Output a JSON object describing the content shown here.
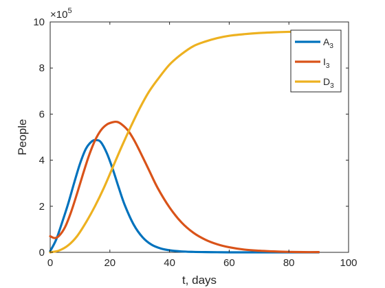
{
  "chart_data": {
    "type": "line",
    "xlabel": "t, days",
    "ylabel": "People",
    "xlim": [
      0,
      100
    ],
    "ylim": [
      0,
      10
    ],
    "y_multiplier": "×10",
    "y_multiplier_exponent": "5",
    "x_ticks": [
      "0",
      "20",
      "40",
      "60",
      "80",
      "100"
    ],
    "y_ticks": [
      "0",
      "2",
      "4",
      "6",
      "8",
      "10"
    ],
    "grid": false,
    "legend_position": "top-right",
    "colors": {
      "A": "#0072BD",
      "I": "#D95319",
      "D": "#EDB120",
      "axis": "#262626"
    },
    "series": [
      {
        "name": "A",
        "subscript": "3",
        "color": "#0072BD",
        "x": [
          0,
          2,
          4,
          6,
          8,
          10,
          12,
          14,
          15.5,
          17,
          19,
          21,
          23,
          25,
          28,
          31,
          34,
          37,
          40,
          44,
          48,
          52,
          56,
          60,
          65,
          70,
          75,
          80,
          85,
          90
        ],
        "y": [
          0.05,
          0.55,
          1.3,
          2.1,
          3.0,
          3.85,
          4.5,
          4.82,
          4.87,
          4.78,
          4.3,
          3.6,
          2.8,
          2.05,
          1.2,
          0.65,
          0.33,
          0.17,
          0.09,
          0.04,
          0.02,
          0.01,
          0.005,
          0.0,
          0.0,
          0.0,
          0.0,
          0.0,
          0.0,
          0.0
        ]
      },
      {
        "name": "I",
        "subscript": "3",
        "color": "#D95319",
        "x": [
          0,
          1.5,
          3,
          5,
          7,
          9,
          11,
          13,
          15,
          17,
          19,
          21,
          22.5,
          24,
          26,
          28,
          30,
          33,
          36,
          40,
          44,
          48,
          52,
          56,
          60,
          65,
          70,
          75,
          80,
          85,
          90
        ],
        "y": [
          0.7,
          0.62,
          0.72,
          1.1,
          1.75,
          2.55,
          3.4,
          4.2,
          4.85,
          5.3,
          5.55,
          5.65,
          5.66,
          5.55,
          5.3,
          4.9,
          4.4,
          3.6,
          2.8,
          1.95,
          1.3,
          0.85,
          0.55,
          0.35,
          0.22,
          0.12,
          0.07,
          0.04,
          0.02,
          0.01,
          0.01
        ]
      },
      {
        "name": "D",
        "subscript": "3",
        "color": "#EDB120",
        "x": [
          0,
          3,
          6,
          9,
          12,
          15,
          18,
          21,
          24,
          27,
          30,
          33,
          36,
          40,
          44,
          48,
          52,
          56,
          60,
          65,
          70,
          75,
          80,
          85,
          90
        ],
        "y": [
          0.0,
          0.08,
          0.3,
          0.7,
          1.3,
          2.0,
          2.8,
          3.7,
          4.6,
          5.45,
          6.25,
          6.95,
          7.5,
          8.15,
          8.6,
          8.95,
          9.15,
          9.3,
          9.4,
          9.47,
          9.52,
          9.55,
          9.57,
          9.58,
          9.58
        ]
      }
    ]
  }
}
